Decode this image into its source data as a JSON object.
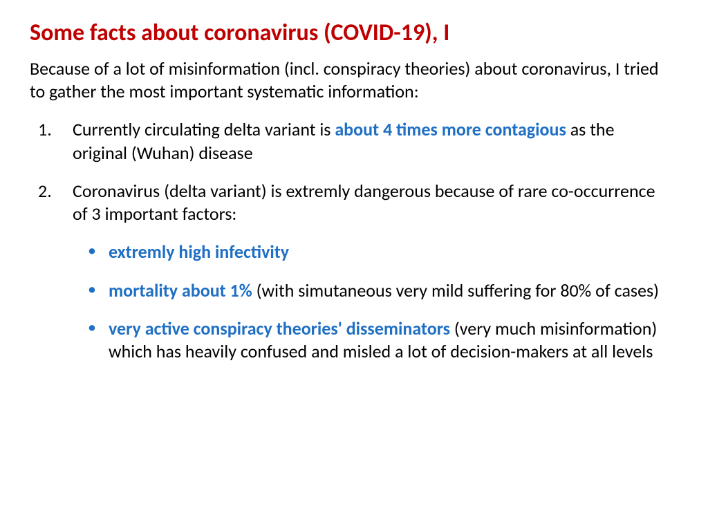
{
  "colors": {
    "title": "#c00000",
    "body": "#000000",
    "highlight": "#1f6fc4",
    "bullet": "#1f6fc4",
    "background": "#ffffff"
  },
  "typography": {
    "title_fontsize": 34,
    "title_weight": 700,
    "body_fontsize": 26,
    "body_weight": 400,
    "highlight_weight": 700,
    "font_family": "Calibri"
  },
  "title": "Some facts about coronavirus (COVID-19), I",
  "intro": "Because of a lot of misinformation (incl. conspiracy theories) about coronavirus, I tried to gather the most important systematic information:",
  "items": [
    {
      "pre": "Currently circulating delta variant is ",
      "hl": "about 4 times more contagious",
      "post": "  as the original (Wuhan) disease"
    },
    {
      "pre": "Coronavirus (delta variant) is extremly dangerous because of rare  co-occurrence of 3 important factors:",
      "hl": "",
      "post": "",
      "sub": [
        {
          "hl": "extremly high infectivity",
          "rest": ""
        },
        {
          "hl": "mortality about 1%",
          "rest": " (with simutaneous very mild suffering for 80% of cases)"
        },
        {
          "hl": "very active conspiracy  theories' disseminators",
          "rest": " (very much misinformation) which has heavily confused and misled a lot of decision-makers at all levels"
        }
      ]
    }
  ]
}
